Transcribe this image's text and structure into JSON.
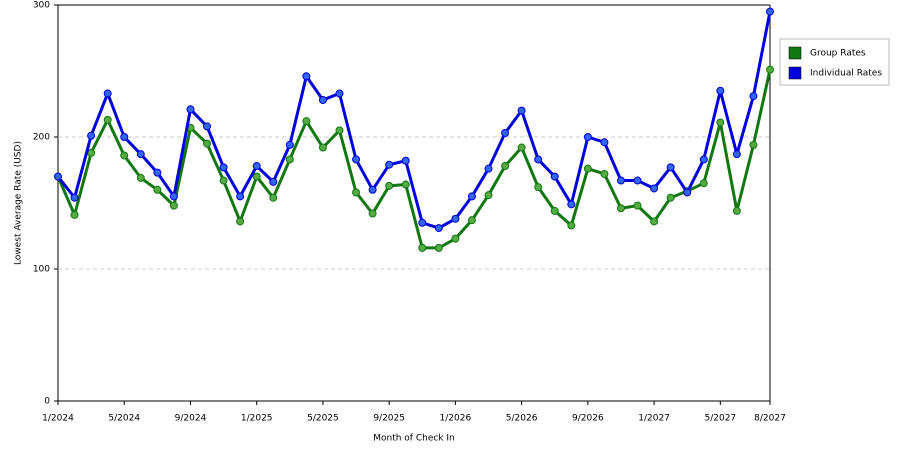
{
  "chart_data": {
    "type": "line",
    "y_label": "Lowest Average Rate (USD)",
    "x_label": "Month of Check In",
    "categories": [
      "1/2024",
      null,
      null,
      null,
      "5/2024",
      null,
      null,
      null,
      "9/2024",
      null,
      null,
      null,
      "1/2025",
      null,
      null,
      null,
      "5/2025",
      null,
      null,
      null,
      "9/2025",
      null,
      null,
      null,
      "1/2026",
      null,
      null,
      null,
      "5/2026",
      null,
      null,
      null,
      "9/2026",
      null,
      null,
      null,
      "1/2027",
      null,
      null,
      null,
      "5/2027",
      null,
      null,
      "8/2027"
    ],
    "series": [
      {
        "name": "Group Rates",
        "color": "#117711",
        "marker_color": "#55aa44",
        "values": [
          170,
          141,
          188,
          213,
          186,
          169,
          160,
          148,
          207,
          195,
          167,
          136,
          170,
          154,
          183,
          212,
          192,
          205,
          158,
          142,
          163,
          164,
          116,
          116,
          123,
          137,
          156,
          178,
          192,
          162,
          144,
          133,
          176,
          172,
          146,
          148,
          136,
          154,
          159,
          165,
          211,
          144,
          194,
          251
        ]
      },
      {
        "name": "Individual Rates",
        "color": "#0000dd",
        "marker_color": "#3366ee",
        "values": [
          170,
          154,
          201,
          233,
          200,
          187,
          173,
          155,
          221,
          208,
          177,
          155,
          178,
          166,
          194,
          246,
          228,
          233,
          183,
          160,
          179,
          182,
          135,
          131,
          138,
          155,
          176,
          203,
          220,
          183,
          170,
          149,
          200,
          196,
          167,
          167,
          161,
          177,
          158,
          183,
          235,
          187,
          231,
          295
        ]
      }
    ],
    "ylim": [
      0,
      300
    ],
    "yticks": [
      0,
      100,
      200,
      300
    ],
    "grid": true
  }
}
